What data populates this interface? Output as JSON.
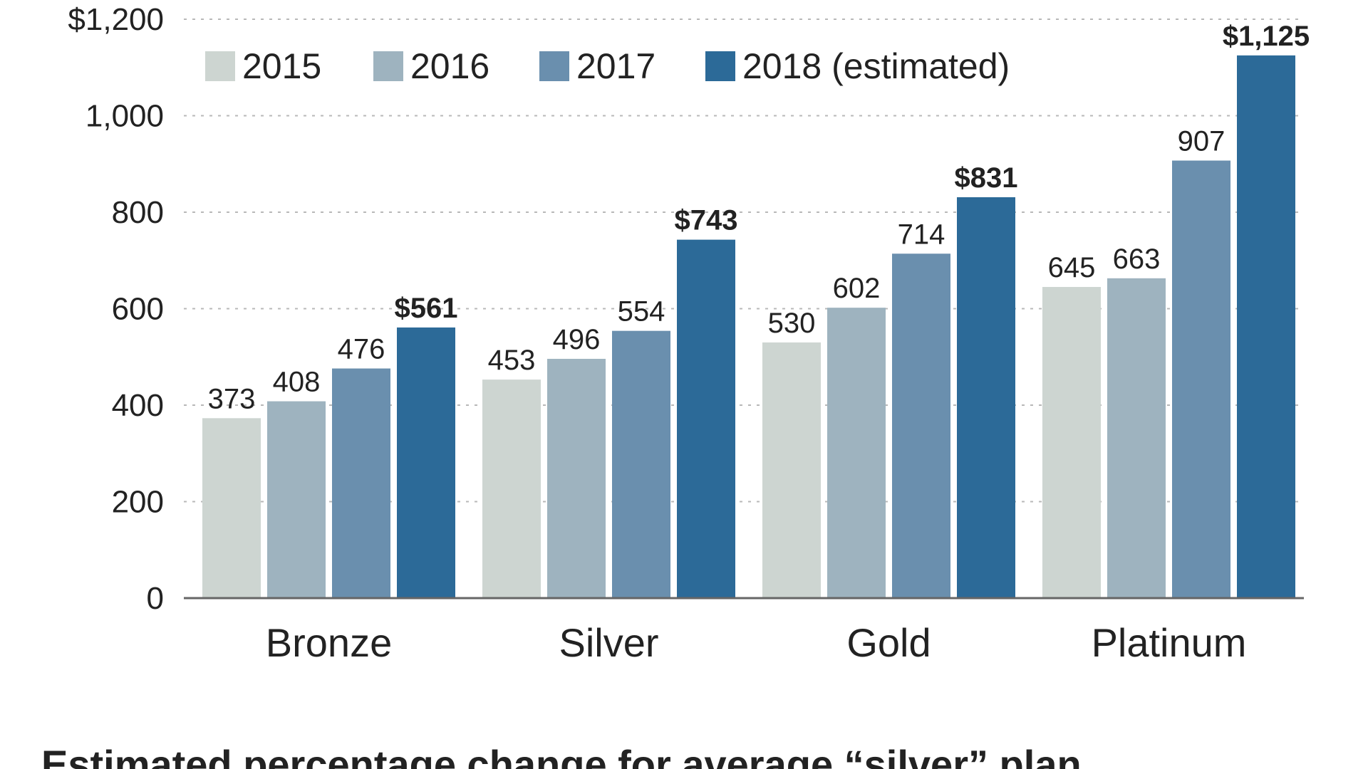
{
  "chart_data": {
    "type": "bar",
    "categories": [
      "Bronze",
      "Silver",
      "Gold",
      "Platinum"
    ],
    "series": [
      {
        "name": "2015",
        "values": [
          373,
          453,
          530,
          645
        ],
        "color": "#cdd5d1",
        "labels": [
          "373",
          "453",
          "530",
          "645"
        ],
        "label_bold": false
      },
      {
        "name": "2016",
        "values": [
          408,
          496,
          602,
          663
        ],
        "color": "#9eb3bf",
        "labels": [
          "408",
          "496",
          "602",
          "663"
        ],
        "label_bold": false
      },
      {
        "name": "2017",
        "values": [
          476,
          554,
          714,
          907
        ],
        "color": "#6a8fae",
        "labels": [
          "476",
          "554",
          "714",
          "907"
        ],
        "label_bold": false
      },
      {
        "name": "2018 (estimated)",
        "values": [
          561,
          743,
          831,
          1125
        ],
        "color": "#2c6a98",
        "labels": [
          "$561",
          "$743",
          "$831",
          "$1,125"
        ],
        "label_bold": true
      }
    ],
    "ylim": [
      0,
      1200
    ],
    "yticks": [
      0,
      200,
      400,
      600,
      800,
      1000,
      1200
    ],
    "ytick_labels": [
      "0",
      "200",
      "400",
      "600",
      "800",
      "1,000",
      "$1,200"
    ],
    "grid": true,
    "legend_position": "top-left",
    "xlabel": "",
    "ylabel": ""
  },
  "footer": {
    "title": "Estimated percentage change for average “silver” plan"
  }
}
